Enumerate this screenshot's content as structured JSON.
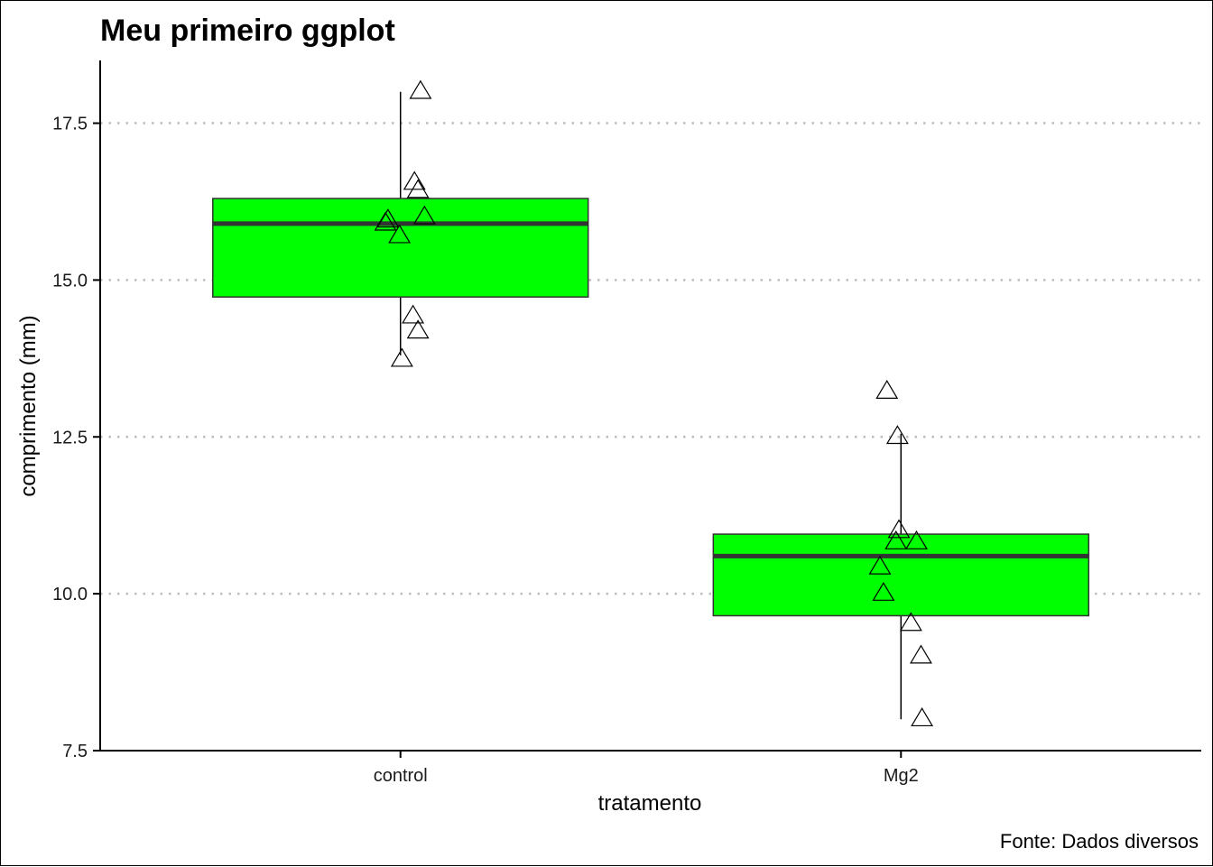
{
  "chart_data": {
    "type": "box",
    "title": "Meu primeiro ggplot",
    "xlabel": "tratamento",
    "ylabel": "comprimento (mm)",
    "caption": "Fonte: Dados diversos",
    "ylim": [
      7.5,
      18.5
    ],
    "yticks": [
      7.5,
      10.0,
      12.5,
      15.0,
      17.5
    ],
    "ytick_labels": [
      "7.5",
      "10.0",
      "12.5",
      "15.0",
      "17.5"
    ],
    "grid": "horizontal-dotted",
    "box_fill": "#00ff00",
    "categories": [
      "control",
      "Mg2"
    ],
    "boxes": [
      {
        "category": "control",
        "min": 13.8,
        "q1": 14.73,
        "median": 15.9,
        "q3": 16.3,
        "max": 18.0
      },
      {
        "category": "Mg2",
        "min": 8.0,
        "q1": 9.65,
        "median": 10.6,
        "q3": 10.95,
        "max": 12.55
      }
    ],
    "points": [
      {
        "category": "control",
        "jitter": -0.03,
        "y": 15.9
      },
      {
        "category": "control",
        "jitter": -0.025,
        "y": 15.95
      },
      {
        "category": "control",
        "jitter": -0.002,
        "y": 15.7
      },
      {
        "category": "control",
        "jitter": 0.003,
        "y": 13.73
      },
      {
        "category": "control",
        "jitter": 0.025,
        "y": 14.42
      },
      {
        "category": "control",
        "jitter": 0.035,
        "y": 14.18
      },
      {
        "category": "control",
        "jitter": 0.04,
        "y": 18.0
      },
      {
        "category": "control",
        "jitter": 0.028,
        "y": 16.55
      },
      {
        "category": "control",
        "jitter": 0.035,
        "y": 16.42
      },
      {
        "category": "control",
        "jitter": 0.048,
        "y": 16.0
      },
      {
        "category": "Mg2",
        "jitter": -0.028,
        "y": 13.22
      },
      {
        "category": "Mg2",
        "jitter": -0.007,
        "y": 12.5
      },
      {
        "category": "Mg2",
        "jitter": -0.004,
        "y": 11.0
      },
      {
        "category": "Mg2",
        "jitter": -0.01,
        "y": 10.82
      },
      {
        "category": "Mg2",
        "jitter": 0.031,
        "y": 10.82
      },
      {
        "category": "Mg2",
        "jitter": -0.042,
        "y": 10.42
      },
      {
        "category": "Mg2",
        "jitter": -0.035,
        "y": 10.0
      },
      {
        "category": "Mg2",
        "jitter": 0.02,
        "y": 9.52
      },
      {
        "category": "Mg2",
        "jitter": 0.04,
        "y": 9.0
      },
      {
        "category": "Mg2",
        "jitter": 0.042,
        "y": 8.0
      }
    ]
  }
}
